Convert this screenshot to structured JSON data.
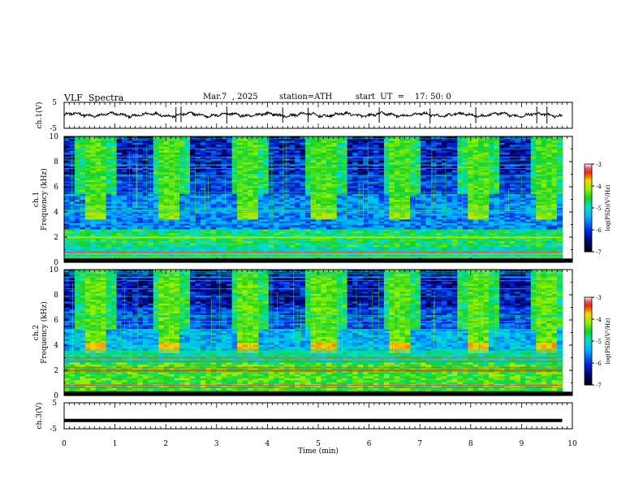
{
  "header": {
    "title": "VLF  Spectra",
    "date": "Mar.7  , 2025",
    "station": "station=ATH",
    "start": "start  UT  =    17: 50: 0"
  },
  "chart_data": [
    {
      "type": "line",
      "panel": "ch1-waveform",
      "ylabel": "ch.1(V)",
      "ylim": [
        -5,
        5
      ],
      "yticks": [
        "5",
        "-5"
      ],
      "x_range_min": [
        0,
        9.8
      ],
      "baseline_v": 0.2,
      "spikes_min": [
        2.2,
        2.3,
        3.2,
        4.3,
        4.8,
        6.2,
        7.2,
        8.1,
        9.3,
        9.5
      ]
    },
    {
      "type": "heatmap",
      "panel": "ch1-spectrogram",
      "ylabel": "ch.1\nFrequency  (kHz)",
      "ylim": [
        0,
        10
      ],
      "yticks": [
        "0",
        "2",
        "4",
        "6",
        "8",
        "10"
      ],
      "burst_start_min": [
        0.4,
        1.9,
        3.4,
        4.9,
        6.4,
        7.9,
        9.3
      ],
      "burst_duration_min": 0.42,
      "burst_band_khz": [
        3.5,
        4.5
      ],
      "colorbar": {
        "label": "log(PSD)(V²/Hz)",
        "range": [
          -7,
          -3
        ],
        "ticks": [
          "-3",
          "-4",
          "-5",
          "-6",
          "-7"
        ]
      }
    },
    {
      "type": "heatmap",
      "panel": "ch2-spectrogram",
      "ylabel": "ch.2\nFrequency  (kHz)",
      "ylim": [
        0,
        10
      ],
      "yticks": [
        "0",
        "2",
        "4",
        "6",
        "8",
        "10"
      ],
      "burst_start_min": [
        0.4,
        1.9,
        3.4,
        4.9,
        6.4,
        7.9,
        9.3
      ],
      "burst_duration_min": 0.42,
      "burst_band_khz": [
        3.5,
        4.2
      ],
      "colorbar": {
        "label": "log(PSD)(V²/Hz)",
        "range": [
          -7,
          -3
        ],
        "ticks": [
          "-3",
          "-4",
          "-5",
          "-6",
          "-7"
        ]
      }
    },
    {
      "type": "line",
      "panel": "ch3-waveform",
      "ylabel": "ch.3(V)",
      "ylim": [
        -5,
        5
      ],
      "yticks": [
        "5",
        "-5"
      ],
      "x_range_min": [
        0,
        9.8
      ],
      "baseline_v": -1.8
    }
  ],
  "xaxis": {
    "label": "Time  (min)",
    "ticks": [
      "0",
      "1",
      "2",
      "3",
      "4",
      "5",
      "6",
      "7",
      "8",
      "9",
      "10"
    ],
    "range": [
      0,
      10
    ]
  }
}
